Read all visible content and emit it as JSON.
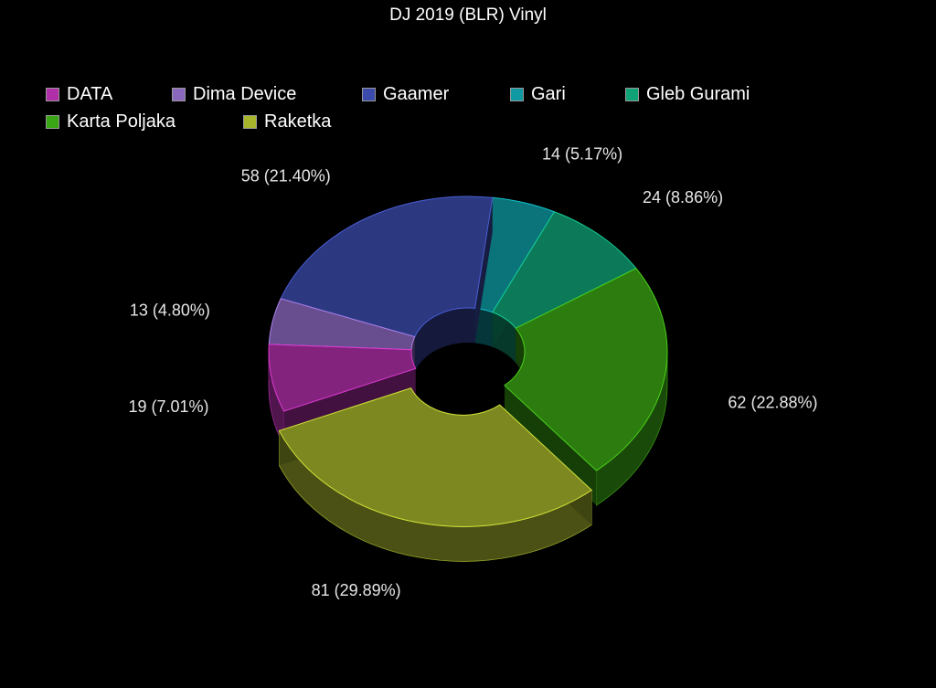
{
  "chart_data": {
    "type": "pie",
    "title": "DJ 2019 (BLR) Vinyl",
    "legend_position": "top-left",
    "donut": true,
    "three_d": true,
    "slices": [
      {
        "name": "DATA",
        "value": 19,
        "label": "19 (7.01%)",
        "color": "#b02ea8"
      },
      {
        "name": "Dima Device",
        "value": 13,
        "label": "13 (4.80%)",
        "color": "#8a68be"
      },
      {
        "name": "Gaamer",
        "value": 58,
        "label": "58 (21.40%)",
        "color": "#3b4bab"
      },
      {
        "name": "Gari",
        "value": 14,
        "label": "14 (5.17%)",
        "color": "#0f9aa3"
      },
      {
        "name": "Gleb Gurami",
        "value": 24,
        "label": "24 (8.86%)",
        "color": "#10a377"
      },
      {
        "name": "Karta Poljaka",
        "value": 62,
        "label": "62 (22.88%)",
        "color": "#3aa514"
      },
      {
        "name": "Raketka",
        "value": 81,
        "label": "81 (29.89%)",
        "color": "#a6b52c"
      }
    ]
  }
}
